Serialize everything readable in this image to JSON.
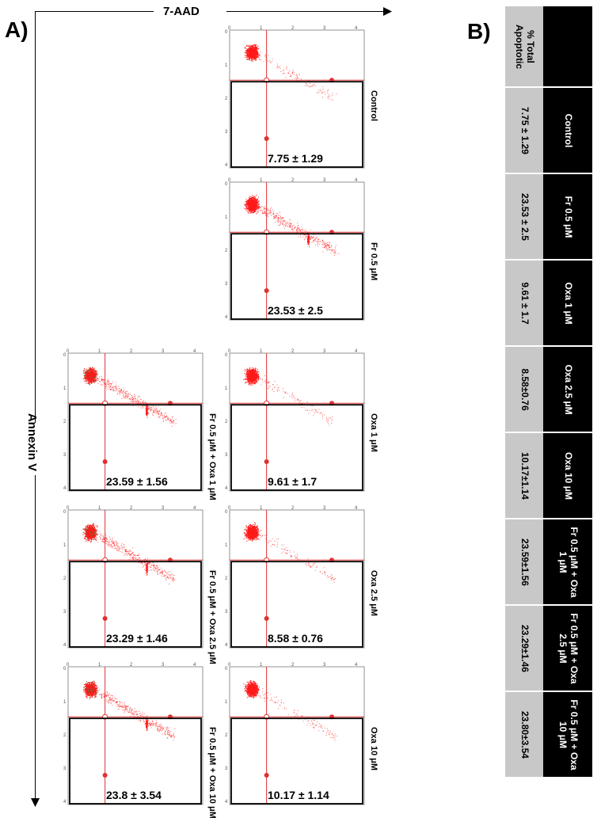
{
  "panel_a_label": "A)",
  "panel_b_label": "B)",
  "x_axis_title": "7-AAD",
  "y_axis_title": "Annexin V",
  "plots": [
    {
      "id": "control",
      "label": "Control",
      "stat": "7.75 ± 1.29"
    },
    {
      "id": "fr05",
      "label": "Fr 0.5 μM",
      "stat": "23.53 ± 2.5"
    },
    {
      "id": "oxa1",
      "label": "Oxa 1 μM",
      "stat": "9.61 ± 1.7"
    },
    {
      "id": "oxa25",
      "label": "Oxa 2.5 μM",
      "stat": "8.58 ± 0.76"
    },
    {
      "id": "oxa10",
      "label": "Oxa 10 μM",
      "stat": "10.17 ± 1.14"
    },
    {
      "id": "fr_oxa1",
      "label": "Fr 0.5 μM + Oxa 1 μM",
      "stat": "23.59 ± 1.56"
    },
    {
      "id": "fr_oxa25",
      "label": "Fr 0.5 μM + Oxa 2.5 μM",
      "stat": "23.29 ± 1.46"
    },
    {
      "id": "fr_oxa10",
      "label": "Fr 0.5 μM + Oxa 10 μM",
      "stat": "23.8 ± 3.54"
    }
  ],
  "table": {
    "header_value": "% Total Apoptotic",
    "rows": [
      {
        "condition": "Control",
        "value": "7.75 ± 1.29"
      },
      {
        "condition": "Fr 0.5 μM",
        "value": "23.53 ± 2.5"
      },
      {
        "condition": "Oxa 1  μM",
        "value": "9.61 ± 1.7"
      },
      {
        "condition": "Oxa 2.5 μM",
        "value": "8.58±0.76"
      },
      {
        "condition": "Oxa 10  μM",
        "value": "10.17±1.14"
      },
      {
        "condition": "Fr 0.5  μM + Oxa 1  μM",
        "value": "23.59±1.56"
      },
      {
        "condition": "Fr 0.5  μM + Oxa 2.5 μM",
        "value": "23.29±1.46"
      },
      {
        "condition": "Fr 0.5  μM + Oxa 10 μM",
        "value": "23.80±3.54"
      }
    ]
  },
  "colors": {
    "dots": "#ff1a1a",
    "gate_line": "#e03030",
    "frame": "#000000",
    "table_value_bg": "#c8c8c8",
    "table_cond_bg": "#000000"
  }
}
